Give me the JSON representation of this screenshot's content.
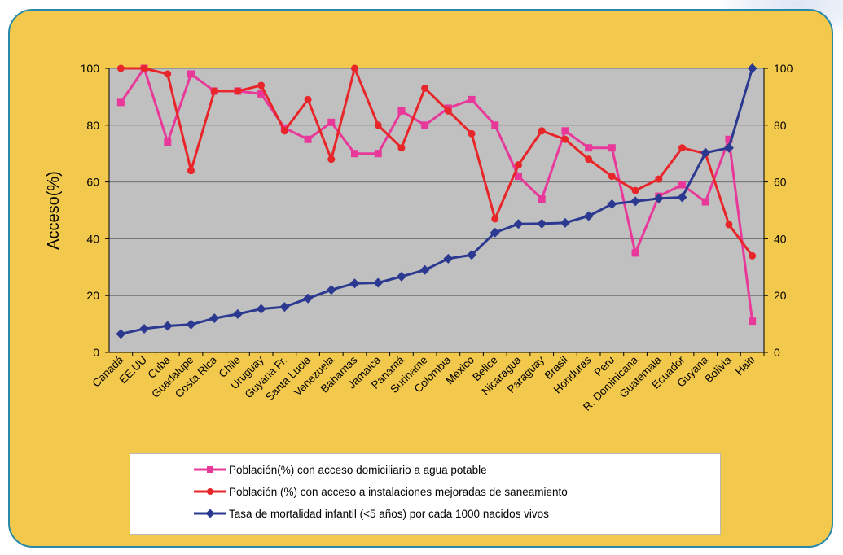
{
  "chart_data": {
    "type": "line",
    "ylabel": "Acceso(%)",
    "ylim": [
      0,
      100
    ],
    "y2lim": [
      0,
      100
    ],
    "yticks": [
      0,
      20,
      40,
      60,
      80,
      100
    ],
    "grid": true,
    "legend_position": "bottom",
    "categories": [
      "Canadá",
      "EE.UU",
      "Cuba",
      "Guadalupe",
      "Costa Rica",
      "Chile",
      "Uruguay",
      "Guyana Fr.",
      "Santa Lucia",
      "Venezuela",
      "Bahamas",
      "Jamaica",
      "Panamá",
      "Suriname",
      "Colombia",
      "México",
      "Belice",
      "Nicaragua",
      "Paraguay",
      "Brasil",
      "Honduras",
      "Perú",
      "R. Dominicana",
      "Guatemala",
      "Ecuador",
      "Guyana",
      "Bolivia",
      "Haiti"
    ],
    "series": [
      {
        "name": "Población(%) con acceso domiciliario a agua potable",
        "color": "#e8399a",
        "marker": "square",
        "axis": "left",
        "values": [
          88,
          100,
          74,
          98,
          92,
          92,
          91,
          79,
          75,
          81,
          70,
          70,
          85,
          80,
          86,
          89,
          80,
          62,
          54,
          78,
          72,
          72,
          35,
          55,
          59,
          53,
          75,
          11
        ]
      },
      {
        "name": "Población (%) con acceso a instalaciones mejoradas de saneamiento",
        "color": "#e8262a",
        "marker": "circle",
        "axis": "left",
        "values": [
          100,
          100,
          98,
          64,
          92,
          92,
          94,
          78,
          89,
          68,
          100,
          80,
          72,
          93,
          85,
          77,
          47,
          66,
          78,
          75,
          68,
          62,
          57,
          61,
          72,
          70,
          45,
          34
        ]
      },
      {
        "name": "Tasa de mortalidad infantil (<5 años) por cada 1000 nacidos vivos",
        "color": "#2b3990",
        "marker": "diamond",
        "axis": "right",
        "values": [
          6.5,
          8.3,
          9.3,
          9.8,
          12,
          13.5,
          15.3,
          16,
          19,
          22,
          24.3,
          24.5,
          26.7,
          29,
          33,
          34.3,
          42.2,
          45.2,
          45.3,
          45.6,
          48,
          52.2,
          53.2,
          54.2,
          54.6,
          70.3,
          72,
          100
        ]
      }
    ]
  }
}
